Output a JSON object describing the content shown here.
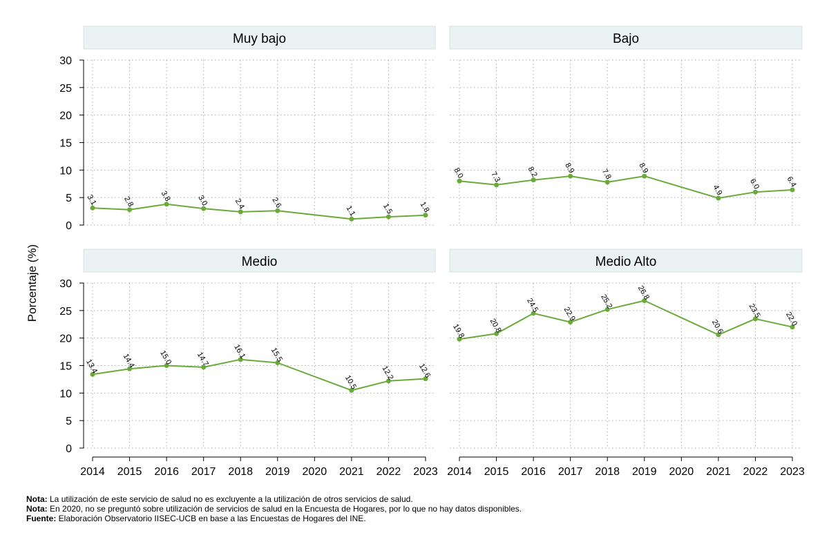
{
  "chart_data": {
    "type": "line",
    "ylabel": "Porcentaje (%)",
    "x": [
      2014,
      2015,
      2016,
      2017,
      2018,
      2019,
      2020,
      2021,
      2022,
      2023
    ],
    "x_labels": [
      "2014",
      "2015",
      "2016",
      "2017",
      "2018",
      "2019",
      "2020",
      "2021",
      "2022",
      "2023"
    ],
    "ylim": [
      0,
      30
    ],
    "yticks": [
      0,
      5,
      10,
      15,
      20,
      25,
      30
    ],
    "grid": true,
    "line_color": "#6aaa3a",
    "panels": [
      {
        "title": "Muy bajo",
        "x": [
          2014,
          2015,
          2016,
          2017,
          2018,
          2019,
          2021,
          2022,
          2023
        ],
        "values": [
          3.1,
          2.8,
          3.8,
          3.0,
          2.4,
          2.6,
          1.1,
          1.5,
          1.8
        ],
        "labels": [
          "3.1",
          "2.8",
          "3.8",
          "3.0",
          "2.4",
          "2.6",
          "1.1",
          "1.5",
          "1.8"
        ]
      },
      {
        "title": "Bajo",
        "x": [
          2014,
          2015,
          2016,
          2017,
          2018,
          2019,
          2021,
          2022,
          2023
        ],
        "values": [
          8.0,
          7.3,
          8.2,
          8.9,
          7.8,
          8.9,
          4.9,
          6.0,
          6.4
        ],
        "labels": [
          "8.0",
          "7.3",
          "8.2",
          "8.9",
          "7.8",
          "8.9",
          "4.9",
          "6.0",
          "6.4"
        ]
      },
      {
        "title": "Medio",
        "x": [
          2014,
          2015,
          2016,
          2017,
          2018,
          2019,
          2021,
          2022,
          2023
        ],
        "values": [
          13.4,
          14.4,
          15.0,
          14.7,
          16.1,
          15.5,
          10.5,
          12.2,
          12.6
        ],
        "labels": [
          "13.4",
          "14.4",
          "15.0",
          "14.7",
          "16.1",
          "15.5",
          "10.5",
          "12.2",
          "12.6"
        ]
      },
      {
        "title": "Medio Alto",
        "x": [
          2014,
          2015,
          2016,
          2017,
          2018,
          2019,
          2021,
          2022,
          2023
        ],
        "values": [
          19.8,
          20.8,
          24.5,
          22.9,
          25.2,
          26.8,
          20.6,
          23.5,
          22.0
        ],
        "labels": [
          "19.8",
          "20.8",
          "24.5",
          "22.9",
          "25.2",
          "26.8",
          "20.6",
          "23.5",
          "22.0"
        ]
      }
    ]
  },
  "notes": [
    {
      "label": "Nota:",
      "text": " La utilización de este servicio de salud no es excluyente a la utilización de otros servicios de salud."
    },
    {
      "label": "Nota:",
      "text": " En 2020, no se preguntó sobre utilización de servicios de salud en la Encuesta de Hogares, por lo que no hay datos disponibles."
    },
    {
      "label": "Fuente:",
      "text": " Elaboración Observatorio IISEC-UCB en base a las Encuestas de Hogares del INE."
    }
  ]
}
